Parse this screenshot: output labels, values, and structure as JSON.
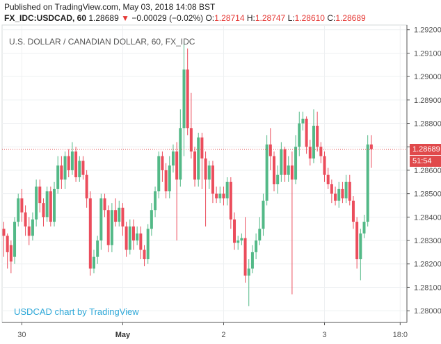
{
  "header": {
    "published": "Published on TradingView.com, May 03, 2018 14:08 BST",
    "symbol": "FX_IDC:USDCAD, 60",
    "last": "1.28689",
    "change_arrow": "▼",
    "change": "−0.00029 (−0.02%)",
    "o_label": "O:",
    "o_value": "1.28714",
    "h_label": "H:",
    "h_value": "1.28747",
    "l_label": "L:",
    "l_value": "1.28610",
    "c_label": "C:",
    "c_value": "1.28689"
  },
  "chart_title": "U.S. DOLLAR / CANADIAN DOLLAR, 60, FX_IDC",
  "watermark": "USDCAD chart by TradingView",
  "price_label": "1.28689",
  "countdown_label": "51:54",
  "colors": {
    "up": "#53b987",
    "down": "#eb4d5c",
    "grid": "#eef0f2",
    "axis": "#555555",
    "price_line": "#e0494b"
  },
  "chart_data": {
    "type": "candlestick",
    "ylim": [
      1.2795,
      1.2922
    ],
    "yticks": [
      "1.28000",
      "1.28100",
      "1.28200",
      "1.28300",
      "1.28400",
      "1.28500",
      "1.28600",
      "1.28700",
      "1.28800",
      "1.28900",
      "1.29000",
      "1.29100",
      "1.29200"
    ],
    "xticks": [
      {
        "label": "30",
        "bold": false,
        "index": 5
      },
      {
        "label": "May",
        "bold": true,
        "index": 33
      },
      {
        "label": "2",
        "bold": false,
        "index": 61
      },
      {
        "label": "3",
        "bold": false,
        "index": 89
      },
      {
        "label": "18:0",
        "bold": false,
        "index": 110
      }
    ],
    "current_price": 1.28689,
    "candles": [
      [
        1.2835,
        1.2832,
        1.2838,
        1.2823
      ],
      [
        1.2832,
        1.2825,
        1.2833,
        1.2818
      ],
      [
        1.2828,
        1.2821,
        1.283,
        1.2816
      ],
      [
        1.2823,
        1.2838,
        1.284,
        1.282
      ],
      [
        1.2838,
        1.2848,
        1.285,
        1.2836
      ],
      [
        1.2848,
        1.2842,
        1.2852,
        1.2838
      ],
      [
        1.2842,
        1.2836,
        1.2845,
        1.2832
      ],
      [
        1.2836,
        1.2832,
        1.284,
        1.2828
      ],
      [
        1.2832,
        1.2839,
        1.2842,
        1.283
      ],
      [
        1.2839,
        1.2853,
        1.2856,
        1.2836
      ],
      [
        1.2853,
        1.2846,
        1.2856,
        1.2842
      ],
      [
        1.2846,
        1.284,
        1.2848,
        1.2836
      ],
      [
        1.284,
        1.2851,
        1.2853,
        1.2838
      ],
      [
        1.2851,
        1.2838,
        1.2853,
        1.2836
      ],
      [
        1.2838,
        1.2852,
        1.2855,
        1.2836
      ],
      [
        1.2852,
        1.2862,
        1.2866,
        1.285
      ],
      [
        1.2862,
        1.2856,
        1.2866,
        1.2852
      ],
      [
        1.2856,
        1.2866,
        1.2868,
        1.2852
      ],
      [
        1.2866,
        1.286,
        1.2869,
        1.2857
      ],
      [
        1.286,
        1.2868,
        1.2872,
        1.2858
      ],
      [
        1.2868,
        1.2857,
        1.287,
        1.2855
      ],
      [
        1.2857,
        1.2864,
        1.2866,
        1.2855
      ],
      [
        1.2864,
        1.2858,
        1.2866,
        1.2856
      ],
      [
        1.2858,
        1.2848,
        1.286,
        1.2844
      ],
      [
        1.2848,
        1.2818,
        1.2851,
        1.2815
      ],
      [
        1.2818,
        1.2823,
        1.2826,
        1.2816
      ],
      [
        1.2823,
        1.283,
        1.2832,
        1.282
      ],
      [
        1.283,
        1.2848,
        1.285,
        1.2826
      ],
      [
        1.2848,
        1.2843,
        1.285,
        1.284
      ],
      [
        1.2843,
        1.2828,
        1.2845,
        1.2825
      ],
      [
        1.2828,
        1.2843,
        1.2846,
        1.2825
      ],
      [
        1.2843,
        1.2838,
        1.2848,
        1.2836
      ],
      [
        1.2838,
        1.2844,
        1.2847,
        1.2836
      ],
      [
        1.2844,
        1.2836,
        1.2846,
        1.2832
      ],
      [
        1.2836,
        1.2826,
        1.2838,
        1.2823
      ],
      [
        1.2826,
        1.2836,
        1.2839,
        1.2824
      ],
      [
        1.2836,
        1.283,
        1.2839,
        1.2826
      ],
      [
        1.283,
        1.2833,
        1.2836,
        1.2828
      ],
      [
        1.2833,
        1.2826,
        1.2836,
        1.2822
      ],
      [
        1.2826,
        1.2822,
        1.2828,
        1.2819
      ],
      [
        1.2822,
        1.2835,
        1.2837,
        1.282
      ],
      [
        1.2835,
        1.2843,
        1.2846,
        1.2832
      ],
      [
        1.2843,
        1.2851,
        1.2853,
        1.284
      ],
      [
        1.2851,
        1.2866,
        1.2868,
        1.2848
      ],
      [
        1.2866,
        1.286,
        1.2868,
        1.2855
      ],
      [
        1.286,
        1.2851,
        1.2863,
        1.2848
      ],
      [
        1.2851,
        1.2862,
        1.2866,
        1.2848
      ],
      [
        1.2862,
        1.2868,
        1.2871,
        1.2859
      ],
      [
        1.2868,
        1.2856,
        1.2872,
        1.283
      ],
      [
        1.2856,
        1.2878,
        1.2886,
        1.2853
      ],
      [
        1.2878,
        1.2903,
        1.2915,
        1.2866
      ],
      [
        1.2903,
        1.2878,
        1.2912,
        1.2875
      ],
      [
        1.2878,
        1.2868,
        1.2893,
        1.2865
      ],
      [
        1.2868,
        1.2856,
        1.287,
        1.2853
      ],
      [
        1.2856,
        1.2874,
        1.2876,
        1.2853
      ],
      [
        1.2874,
        1.2865,
        1.2876,
        1.2852
      ],
      [
        1.2865,
        1.2856,
        1.2868,
        1.2836
      ],
      [
        1.2856,
        1.2862,
        1.2864,
        1.2852
      ],
      [
        1.2862,
        1.285,
        1.2864,
        1.2846
      ],
      [
        1.285,
        1.2848,
        1.2853,
        1.2846
      ],
      [
        1.2848,
        1.285,
        1.2853,
        1.2846
      ],
      [
        1.285,
        1.2848,
        1.2853,
        1.2845
      ],
      [
        1.2848,
        1.2855,
        1.2857,
        1.2845
      ],
      [
        1.2855,
        1.2839,
        1.2857,
        1.2835
      ],
      [
        1.2839,
        1.2829,
        1.2842,
        1.2826
      ],
      [
        1.2829,
        1.283,
        1.2832,
        1.2826
      ],
      [
        1.283,
        1.2831,
        1.2833,
        1.2828
      ],
      [
        1.2831,
        1.2815,
        1.284,
        1.2812
      ],
      [
        1.2815,
        1.2818,
        1.2822,
        1.2802
      ],
      [
        1.2818,
        1.2825,
        1.2828,
        1.2816
      ],
      [
        1.2825,
        1.283,
        1.2833,
        1.2822
      ],
      [
        1.283,
        1.2835,
        1.284,
        1.2828
      ],
      [
        1.2835,
        1.2847,
        1.285,
        1.2832
      ],
      [
        1.2847,
        1.2871,
        1.2875,
        1.2845
      ],
      [
        1.2871,
        1.2866,
        1.2878,
        1.286
      ],
      [
        1.2866,
        1.2854,
        1.2868,
        1.2851
      ],
      [
        1.2854,
        1.2858,
        1.2862,
        1.285
      ],
      [
        1.2858,
        1.2869,
        1.2872,
        1.2855
      ],
      [
        1.2869,
        1.2858,
        1.287,
        1.2855
      ],
      [
        1.2858,
        1.2862,
        1.2866,
        1.2855
      ],
      [
        1.2862,
        1.2856,
        1.2868,
        1.2807
      ],
      [
        1.2856,
        1.287,
        1.2875,
        1.2854
      ],
      [
        1.287,
        1.288,
        1.2885,
        1.2866
      ],
      [
        1.288,
        1.2882,
        1.2885,
        1.2877
      ],
      [
        1.2882,
        1.287,
        1.2883,
        1.2867
      ],
      [
        1.287,
        1.2865,
        1.2873,
        1.2862
      ],
      [
        1.2865,
        1.2879,
        1.2886,
        1.2863
      ],
      [
        1.2879,
        1.287,
        1.2885,
        1.2868
      ],
      [
        1.287,
        1.2866,
        1.2872,
        1.2863
      ],
      [
        1.2866,
        1.2858,
        1.2868,
        1.2855
      ],
      [
        1.2858,
        1.2854,
        1.2861,
        1.2852
      ],
      [
        1.2854,
        1.285,
        1.2856,
        1.2846
      ],
      [
        1.285,
        1.2847,
        1.2853,
        1.2845
      ],
      [
        1.2847,
        1.2852,
        1.2855,
        1.2844
      ],
      [
        1.2852,
        1.2848,
        1.2855,
        1.2846
      ],
      [
        1.2848,
        1.2855,
        1.2858,
        1.2846
      ],
      [
        1.2855,
        1.2847,
        1.2858,
        1.2845
      ],
      [
        1.2847,
        1.2838,
        1.2849,
        1.2835
      ],
      [
        1.2838,
        1.2822,
        1.284,
        1.2818
      ],
      [
        1.2822,
        1.2833,
        1.2835,
        1.2813
      ],
      [
        1.2833,
        1.2838,
        1.2841,
        1.2831
      ],
      [
        1.2838,
        1.2871,
        1.2875,
        1.2836
      ],
      [
        1.2871,
        1.2869,
        1.2875,
        1.2861
      ]
    ]
  }
}
